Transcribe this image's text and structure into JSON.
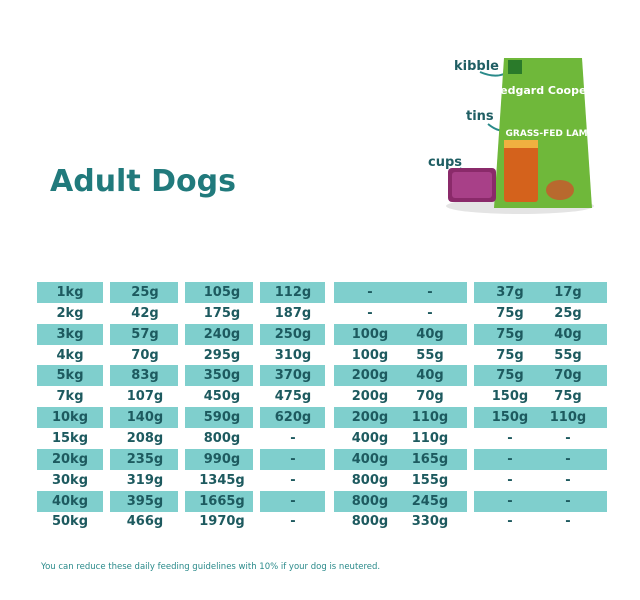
{
  "title": "Adult Dogs",
  "product": {
    "labels": [
      "kibble",
      "tins",
      "cups"
    ],
    "brand": "edgard Cooper",
    "recipe": "GRASS-FED LAMB"
  },
  "table": {
    "rows": [
      [
        "1kg",
        "25g",
        "105g",
        "112g",
        "-",
        "-",
        "37g",
        "17g"
      ],
      [
        "2kg",
        "42g",
        "175g",
        "187g",
        "-",
        "-",
        "75g",
        "25g"
      ],
      [
        "3kg",
        "57g",
        "240g",
        "250g",
        "100g",
        "40g",
        "75g",
        "40g"
      ],
      [
        "4kg",
        "70g",
        "295g",
        "310g",
        "100g",
        "55g",
        "75g",
        "55g"
      ],
      [
        "5kg",
        "83g",
        "350g",
        "370g",
        "200g",
        "40g",
        "75g",
        "70g"
      ],
      [
        "7kg",
        "107g",
        "450g",
        "475g",
        "200g",
        "70g",
        "150g",
        "75g"
      ],
      [
        "10kg",
        "140g",
        "590g",
        "620g",
        "200g",
        "110g",
        "150g",
        "110g"
      ],
      [
        "15kg",
        "208g",
        "800g",
        "-",
        "400g",
        "110g",
        "-",
        "-"
      ],
      [
        "20kg",
        "235g",
        "990g",
        "-",
        "400g",
        "165g",
        "-",
        "-"
      ],
      [
        "30kg",
        "319g",
        "1345g",
        "-",
        "800g",
        "155g",
        "-",
        "-"
      ],
      [
        "40kg",
        "395g",
        "1665g",
        "-",
        "800g",
        "245g",
        "-",
        "-"
      ],
      [
        "50kg",
        "466g",
        "1970g",
        "-",
        "800g",
        "330g",
        "-",
        "-"
      ]
    ]
  },
  "footnote": "You can reduce these daily feeding guidelines with 10% if your dog is neutered."
}
